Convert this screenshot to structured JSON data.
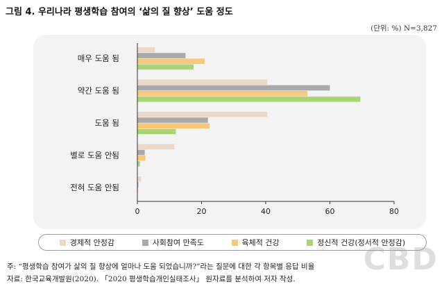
{
  "header": {
    "title": "그림 4. 우리나라 평생학습 참여의 ‘삶의 질 향상’ 도움 정도",
    "unit": "(단위: %) N=3,827"
  },
  "chart_data": {
    "type": "bar",
    "orientation": "horizontal",
    "categories": [
      "매우 도움 됨",
      "약간 도움 됨",
      "도움 됨",
      "별로 도움 안됨",
      "전혀 도움 안됨"
    ],
    "series": [
      {
        "name": "경제적 안정감",
        "color": "#ead9c8",
        "values": [
          5.5,
          40.5,
          40.5,
          11.5,
          1.2
        ]
      },
      {
        "name": "사회참여 만족도",
        "color": "#a9a9a9",
        "values": [
          15,
          60,
          22,
          2.3,
          0.3
        ]
      },
      {
        "name": "육체적 건강",
        "color": "#f8c87a",
        "values": [
          21,
          53,
          22.5,
          2.5,
          0.2
        ]
      },
      {
        "name": "정신적 건강(정서적 안정감)",
        "color": "#a9d473",
        "values": [
          17.5,
          69.5,
          12,
          0.8,
          0.1
        ]
      }
    ],
    "x_ticks": [
      "0",
      "20",
      "40",
      "60",
      "80"
    ],
    "xlim": [
      0,
      80
    ],
    "grid": false,
    "legend_position": "bottom"
  },
  "footer": {
    "note": "주: “평생학습 참여가 삶의 질 향상에 얼마나 도움 되었습니까?”라는 질문에 대한 각 항목별 응답 비율",
    "source": "자료: 한국교육개발원(2020). 「2020 평생학습개인실태조사」 원자료를 분석하여 저자 작성."
  },
  "watermark": "CBD"
}
